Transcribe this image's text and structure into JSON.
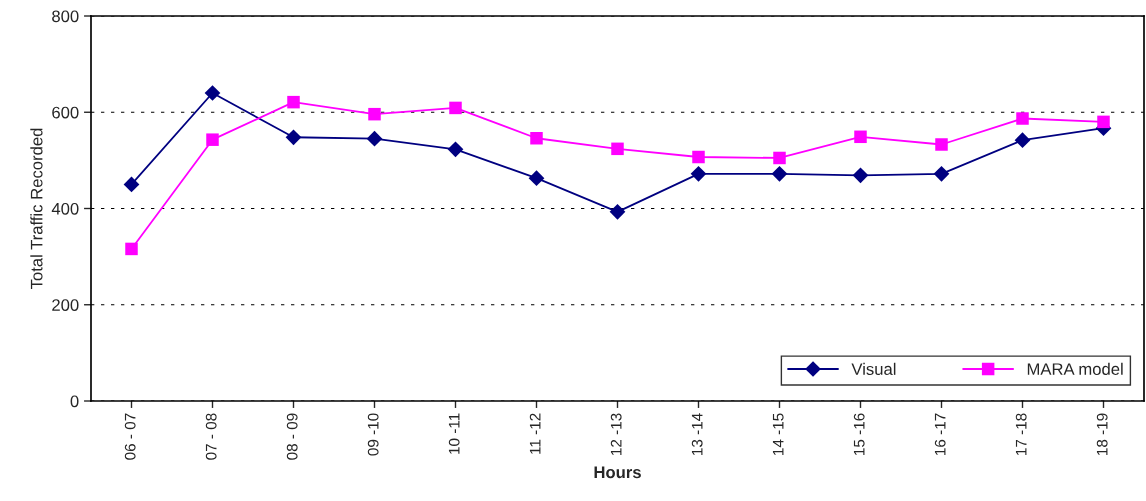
{
  "chart_data": {
    "type": "line",
    "xlabel": "Hours",
    "ylabel": "Total Traffic Recorded",
    "categories": [
      "06 - 07",
      "07 - 08",
      "08 - 09",
      "09 -10",
      "10 -11",
      "11 -12",
      "12 -13",
      "13 -14",
      "14 -15",
      "15 -16",
      "16 -17",
      "17 -18",
      "18 -19"
    ],
    "series": [
      {
        "name": "Visual",
        "color": "#000080",
        "marker": "diamond",
        "values": [
          450,
          640,
          548,
          545,
          523,
          463,
          393,
          472,
          472,
          469,
          472,
          542,
          567
        ]
      },
      {
        "name": "MARA model",
        "color": "#ff00ff",
        "marker": "square",
        "values": [
          316,
          543,
          621,
          596,
          609,
          546,
          524,
          507,
          505,
          549,
          533,
          587,
          580
        ]
      }
    ],
    "ylim": [
      0,
      800
    ],
    "yticks": [
      0,
      200,
      400,
      600,
      800
    ],
    "grid": "y",
    "legend": "bottom right"
  }
}
